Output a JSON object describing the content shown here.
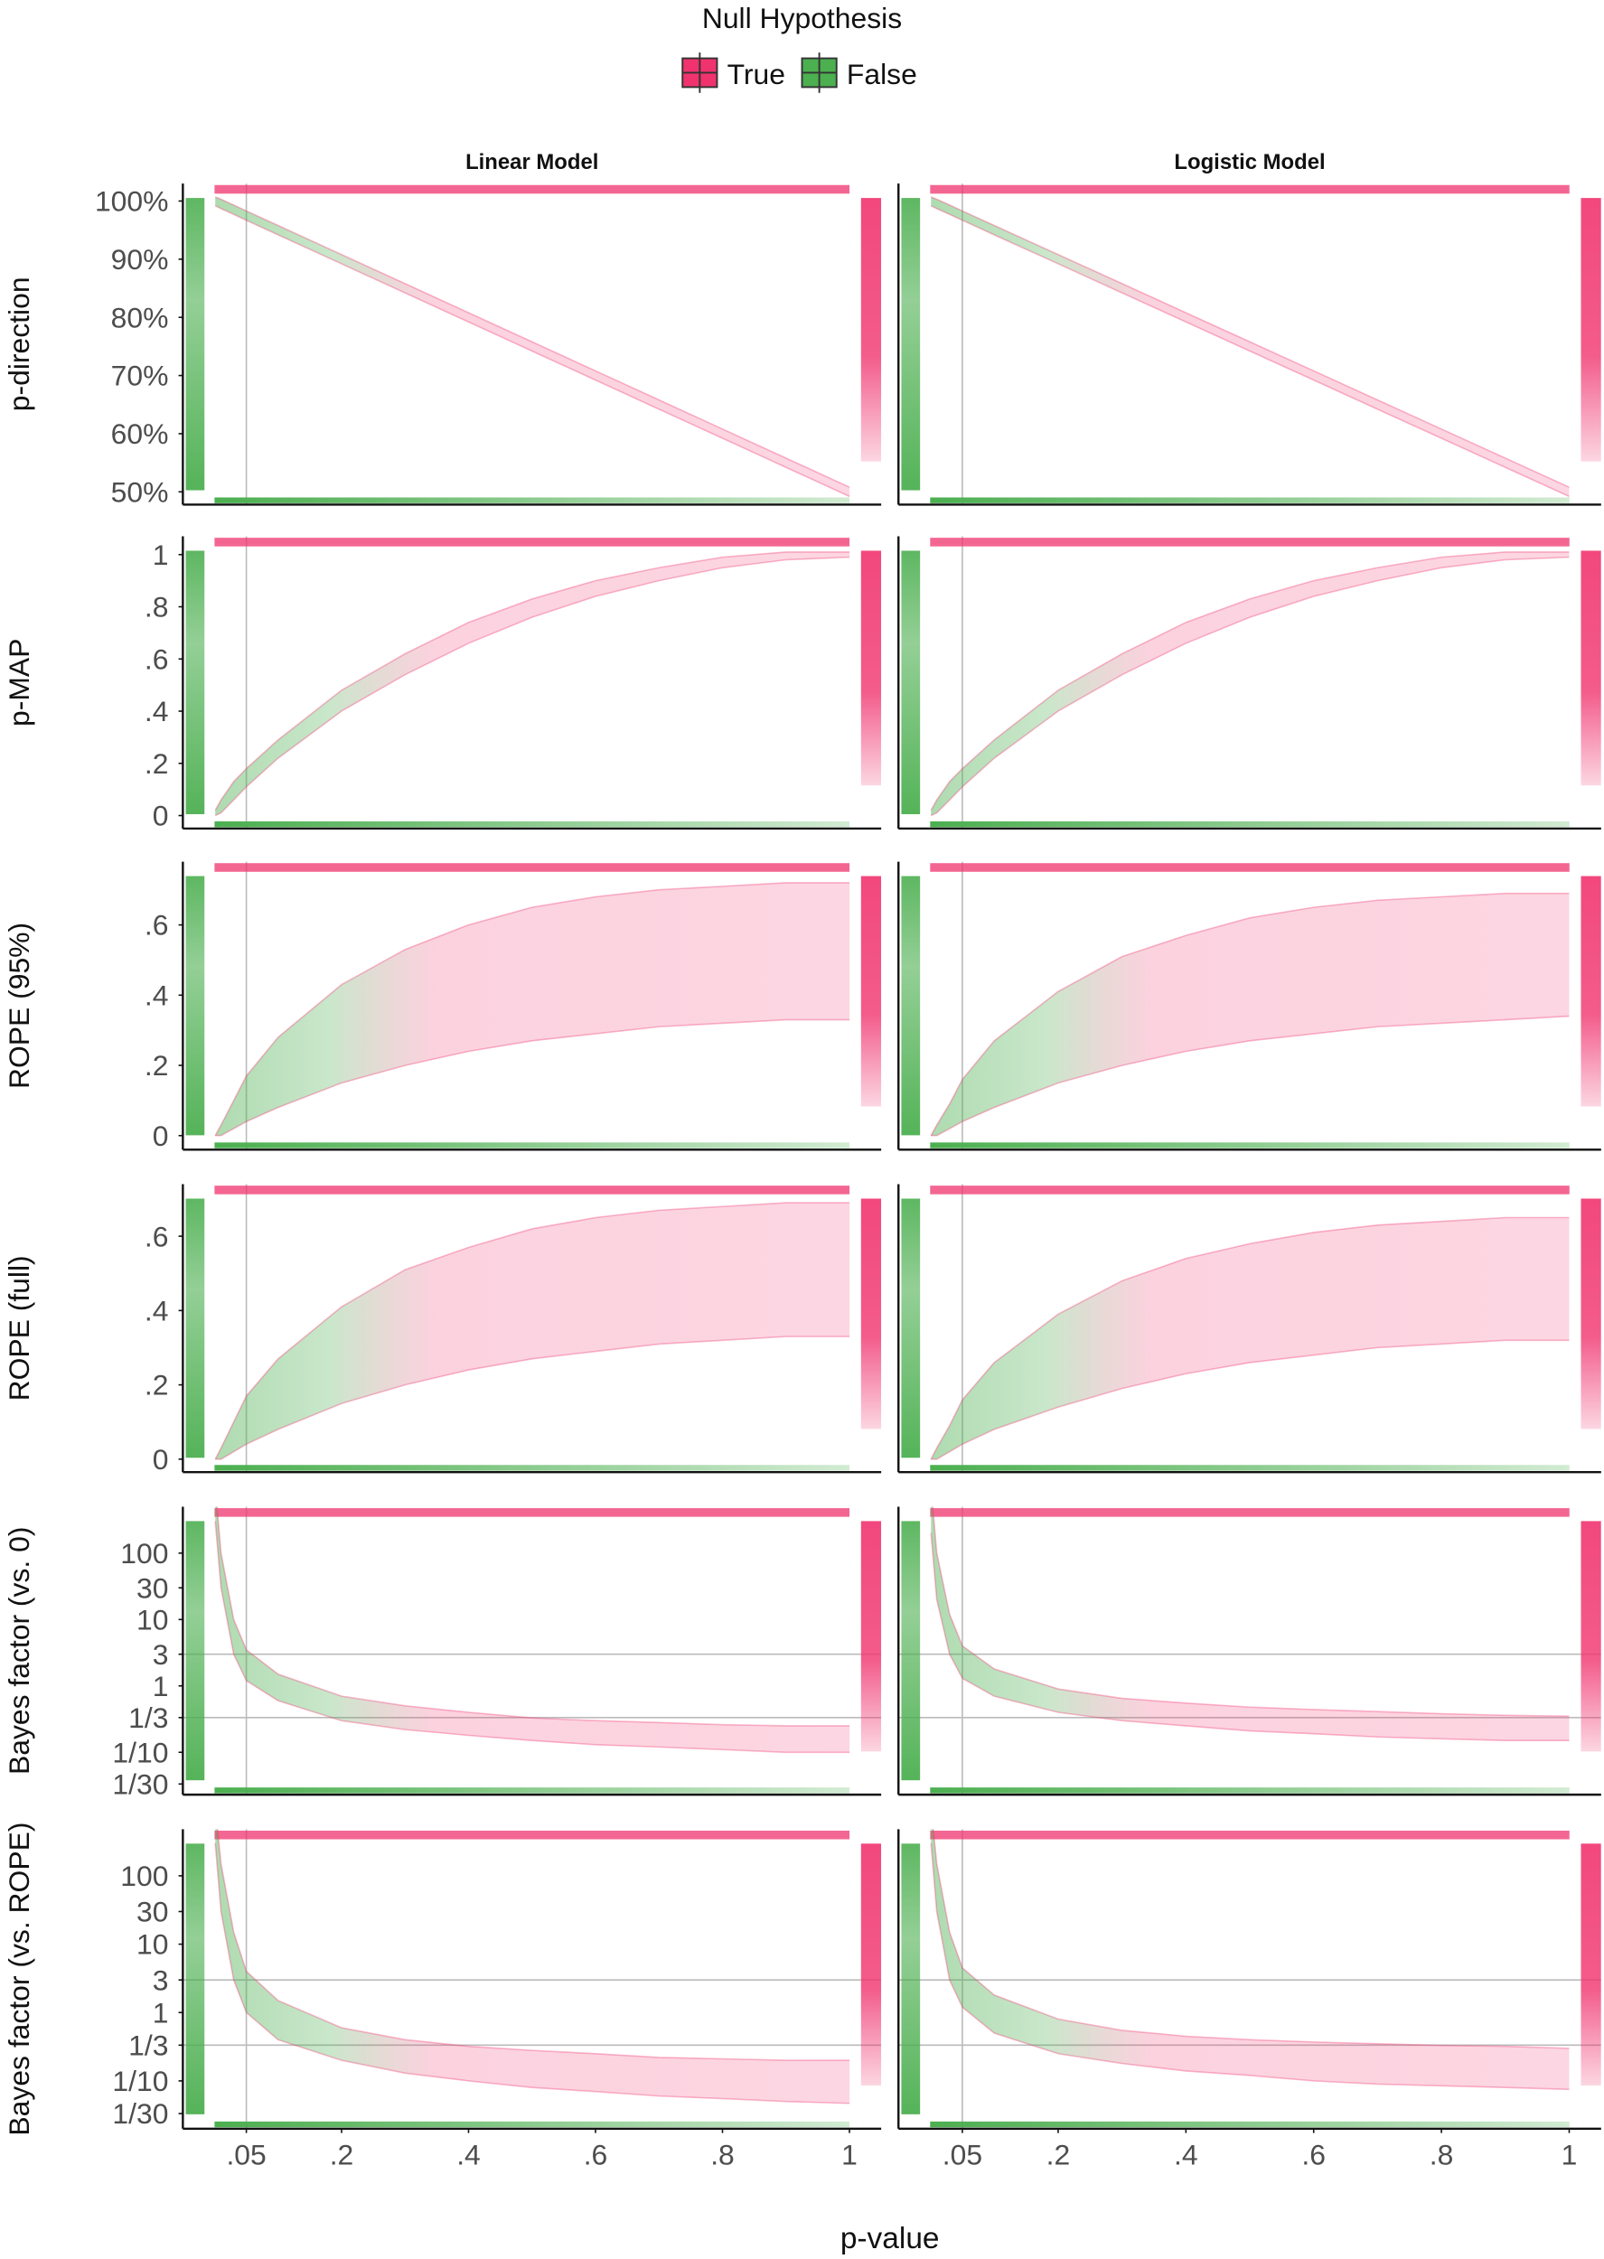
{
  "chart_data": {
    "type": "line",
    "legend_title": "Null Hypothesis",
    "series": [
      {
        "name": "True",
        "color": "#f0336e"
      },
      {
        "name": "False",
        "color": "#4caf50"
      }
    ],
    "columns": [
      "Linear Model",
      "Logistic Model"
    ],
    "x": [
      0.001,
      0.01,
      0.03,
      0.05,
      0.1,
      0.2,
      0.3,
      0.4,
      0.5,
      0.6,
      0.7,
      0.8,
      0.9,
      1
    ],
    "xlim": [
      -0.05,
      1.05
    ],
    "xticks": [
      {
        "value": 0.05,
        "label": ".05"
      },
      {
        "value": 0.2,
        "label": ".2"
      },
      {
        "value": 0.4,
        "label": ".4"
      },
      {
        "value": 0.6,
        "label": ".6"
      },
      {
        "value": 0.8,
        "label": ".8"
      },
      1
    ],
    "xlabel": "p-value",
    "xline": 0.05,
    "rows": [
      {
        "ylabel": "p-direction",
        "ylim": [
          47.8,
          103
        ],
        "yticks": [
          {
            "value": 50,
            "label": "50%"
          },
          {
            "value": 60,
            "label": "60%"
          },
          {
            "value": 70,
            "label": "70%"
          },
          {
            "value": 80,
            "label": "80%"
          },
          {
            "value": 90,
            "label": "90%"
          },
          {
            "value": 100,
            "label": "100%"
          }
        ],
        "panels": [
          {
            "lower": [
              99.2,
              98.7,
              97.7,
              96.7,
              94.2,
              89.2,
              84.2,
              79.2,
              74.2,
              69.2,
              64.2,
              59.2,
              54.2,
              49.2
            ],
            "upper": [
              100.7,
              100.3,
              99.3,
              98.3,
              95.8,
              90.8,
              85.8,
              80.8,
              75.8,
              70.8,
              65.8,
              60.8,
              55.8,
              50.8
            ]
          },
          {
            "lower": [
              99.2,
              98.7,
              97.7,
              96.7,
              94.2,
              89.2,
              84.2,
              79.2,
              74.2,
              69.2,
              64.2,
              59.2,
              54.2,
              49.2
            ],
            "upper": [
              100.7,
              100.3,
              99.3,
              98.3,
              95.8,
              90.8,
              85.8,
              80.8,
              75.8,
              70.8,
              65.8,
              60.8,
              55.8,
              50.8
            ]
          }
        ]
      },
      {
        "ylabel": "p-MAP",
        "ylim": [
          -0.05,
          1.07
        ],
        "yticks": [
          0,
          {
            "value": 0.2,
            "label": ".2"
          },
          {
            "value": 0.4,
            "label": ".4"
          },
          {
            "value": 0.6,
            "label": ".6"
          },
          {
            "value": 0.8,
            "label": ".8"
          },
          1
        ],
        "panels": [
          {
            "lower": [
              0,
              0.01,
              0.06,
              0.11,
              0.22,
              0.4,
              0.54,
              0.66,
              0.76,
              0.84,
              0.9,
              0.95,
              0.98,
              0.99
            ],
            "upper": [
              0.02,
              0.06,
              0.13,
              0.18,
              0.29,
              0.48,
              0.62,
              0.74,
              0.83,
              0.9,
              0.95,
              0.99,
              1.01,
              1.01
            ]
          },
          {
            "lower": [
              0,
              0.01,
              0.06,
              0.11,
              0.22,
              0.4,
              0.54,
              0.66,
              0.76,
              0.84,
              0.9,
              0.95,
              0.98,
              0.99
            ],
            "upper": [
              0.02,
              0.06,
              0.13,
              0.18,
              0.29,
              0.48,
              0.62,
              0.74,
              0.83,
              0.9,
              0.95,
              0.99,
              1.01,
              1.01
            ]
          }
        ]
      },
      {
        "ylabel": "ROPE (95%)",
        "ylim": [
          -0.04,
          0.78
        ],
        "yticks": [
          0,
          {
            "value": 0.2,
            "label": ".2"
          },
          {
            "value": 0.4,
            "label": ".4"
          },
          {
            "value": 0.6,
            "label": ".6"
          }
        ],
        "panels": [
          {
            "lower": [
              0,
              0,
              0.02,
              0.04,
              0.08,
              0.15,
              0.2,
              0.24,
              0.27,
              0.29,
              0.31,
              0.32,
              0.33,
              0.33
            ],
            "upper": [
              0,
              0.03,
              0.1,
              0.17,
              0.28,
              0.43,
              0.53,
              0.6,
              0.65,
              0.68,
              0.7,
              0.71,
              0.72,
              0.72
            ]
          },
          {
            "lower": [
              0,
              0,
              0.02,
              0.04,
              0.08,
              0.15,
              0.2,
              0.24,
              0.27,
              0.29,
              0.31,
              0.32,
              0.33,
              0.34
            ],
            "upper": [
              0,
              0.03,
              0.09,
              0.16,
              0.27,
              0.41,
              0.51,
              0.57,
              0.62,
              0.65,
              0.67,
              0.68,
              0.69,
              0.69
            ]
          }
        ]
      },
      {
        "ylabel": "ROPE (full)",
        "ylim": [
          -0.035,
          0.74
        ],
        "yticks": [
          0,
          {
            "value": 0.2,
            "label": ".2"
          },
          {
            "value": 0.4,
            "label": ".4"
          },
          {
            "value": 0.6,
            "label": ".6"
          }
        ],
        "panels": [
          {
            "lower": [
              0,
              0,
              0.02,
              0.04,
              0.08,
              0.15,
              0.2,
              0.24,
              0.27,
              0.29,
              0.31,
              0.32,
              0.33,
              0.33
            ],
            "upper": [
              0,
              0.03,
              0.1,
              0.17,
              0.27,
              0.41,
              0.51,
              0.57,
              0.62,
              0.65,
              0.67,
              0.68,
              0.69,
              0.69
            ]
          },
          {
            "lower": [
              0,
              0,
              0.02,
              0.04,
              0.08,
              0.14,
              0.19,
              0.23,
              0.26,
              0.28,
              0.3,
              0.31,
              0.32,
              0.32
            ],
            "upper": [
              0,
              0.03,
              0.09,
              0.16,
              0.26,
              0.39,
              0.48,
              0.54,
              0.58,
              0.61,
              0.63,
              0.64,
              0.65,
              0.65
            ]
          }
        ]
      },
      {
        "ylabel": "Bayes factor (vs. 0)",
        "ylim": [
          0.023,
          500
        ],
        "log": true,
        "ylines": [
          3,
          0.3333
        ],
        "yticks": [
          {
            "value": 0.0333,
            "label": "1/30"
          },
          {
            "value": 0.1,
            "label": "1/10"
          },
          {
            "value": 0.3333,
            "label": "1/3"
          },
          1,
          3,
          10,
          30,
          100
        ],
        "panels": [
          {
            "lower": [
              300,
              30,
              3,
              1.2,
              0.6,
              0.3,
              0.22,
              0.18,
              0.15,
              0.13,
              0.12,
              0.11,
              0.1,
              0.1
            ],
            "upper": [
              1000,
              100,
              10,
              3.5,
              1.5,
              0.7,
              0.5,
              0.4,
              0.33,
              0.3,
              0.28,
              0.26,
              0.25,
              0.25
            ]
          },
          {
            "lower": [
              200,
              20,
              3,
              1.3,
              0.7,
              0.4,
              0.3,
              0.25,
              0.21,
              0.19,
              0.17,
              0.16,
              0.15,
              0.15
            ],
            "upper": [
              1000,
              100,
              12,
              4,
              1.8,
              0.9,
              0.65,
              0.55,
              0.48,
              0.44,
              0.41,
              0.38,
              0.36,
              0.35
            ]
          }
        ]
      },
      {
        "ylabel": "Bayes factor (vs. ROPE)",
        "ylim": [
          0.02,
          480
        ],
        "log": true,
        "ylines": [
          3,
          0.3333
        ],
        "yticks": [
          {
            "value": 0.0333,
            "label": "1/30"
          },
          {
            "value": 0.1,
            "label": "1/10"
          },
          {
            "value": 0.3333,
            "label": "1/3"
          },
          1,
          3,
          10,
          30,
          100
        ],
        "panels": [
          {
            "lower": [
              300,
              30,
              3,
              1,
              0.4,
              0.2,
              0.13,
              0.1,
              0.08,
              0.07,
              0.06,
              0.055,
              0.05,
              0.047
            ],
            "upper": [
              1000,
              150,
              15,
              4,
              1.5,
              0.6,
              0.4,
              0.32,
              0.28,
              0.25,
              0.22,
              0.21,
              0.2,
              0.2
            ]
          },
          {
            "lower": [
              300,
              30,
              3,
              1.2,
              0.5,
              0.25,
              0.18,
              0.14,
              0.12,
              0.1,
              0.09,
              0.085,
              0.08,
              0.075
            ],
            "upper": [
              1000,
              150,
              15,
              4.5,
              1.8,
              0.8,
              0.55,
              0.45,
              0.4,
              0.37,
              0.35,
              0.33,
              0.32,
              0.3
            ]
          }
        ]
      }
    ]
  }
}
